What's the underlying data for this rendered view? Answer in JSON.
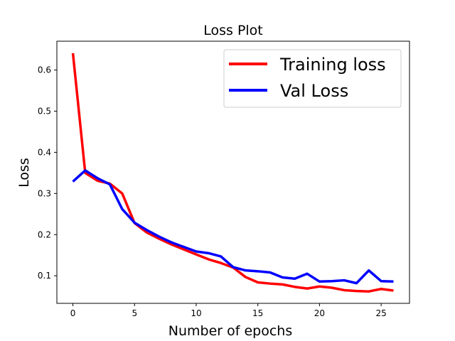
{
  "chart_data": {
    "type": "line",
    "title": "Loss Plot",
    "xlabel": "Number of epochs",
    "ylabel": "Loss",
    "xlim": [
      -1.3,
      27.3
    ],
    "ylim": [
      0.033,
      0.67
    ],
    "xticks": [
      0,
      5,
      10,
      15,
      20,
      25
    ],
    "yticks": [
      0.1,
      0.2,
      0.3,
      0.4,
      0.5,
      0.6
    ],
    "x": [
      0,
      1,
      2,
      3,
      4,
      5,
      6,
      7,
      8,
      9,
      10,
      11,
      12,
      13,
      14,
      15,
      16,
      17,
      18,
      19,
      20,
      21,
      22,
      23,
      24,
      25,
      26
    ],
    "series": [
      {
        "name": "Training loss",
        "color": "#ff0000",
        "values": [
          0.641,
          0.35,
          0.331,
          0.324,
          0.3,
          0.228,
          0.205,
          0.19,
          0.176,
          0.164,
          0.152,
          0.14,
          0.131,
          0.12,
          0.097,
          0.084,
          0.081,
          0.079,
          0.073,
          0.069,
          0.074,
          0.071,
          0.065,
          0.063,
          0.062,
          0.068,
          0.064
        ]
      },
      {
        "name": "Val Loss",
        "color": "#0000ff",
        "values": [
          0.329,
          0.356,
          0.337,
          0.322,
          0.262,
          0.229,
          0.211,
          0.195,
          0.181,
          0.17,
          0.159,
          0.155,
          0.147,
          0.121,
          0.113,
          0.111,
          0.108,
          0.096,
          0.093,
          0.105,
          0.086,
          0.087,
          0.089,
          0.082,
          0.113,
          0.087,
          0.086
        ]
      }
    ],
    "legend_position": "top-right",
    "grid": false
  }
}
